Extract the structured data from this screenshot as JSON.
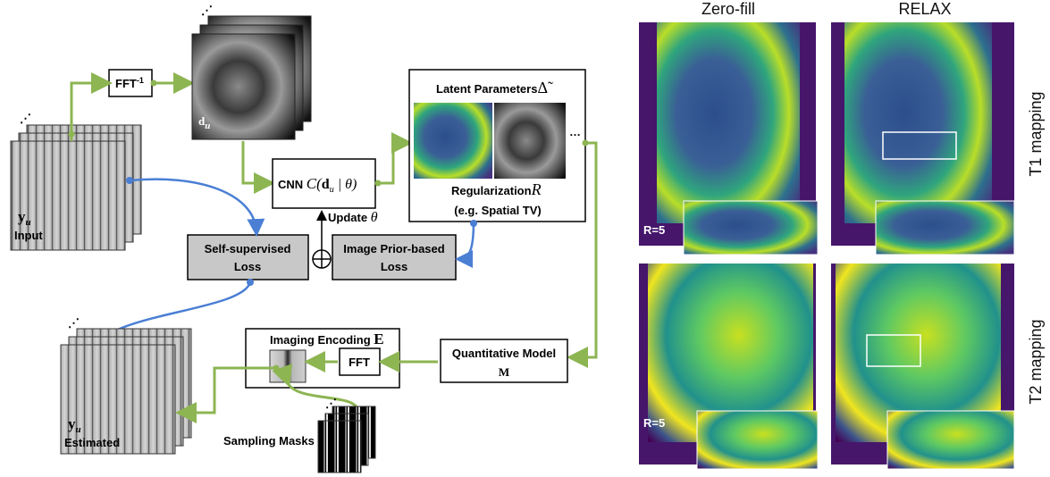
{
  "fft_inverse": {
    "text": "FFT",
    "sup": "-1"
  },
  "du_label": {
    "base": "d",
    "sub": "u"
  },
  "cnn": {
    "label": "CNN",
    "formula_start": "C(",
    "d": "d",
    "sub": "u",
    "formula_end": " | θ)"
  },
  "update": {
    "label": "Update",
    "symbol": "θ"
  },
  "latent": {
    "title": "Latent Parameters",
    "symbol": "Δ̃",
    "regularization": "Regularization",
    "reg_symbol": "R",
    "example": "(e.g. Spatial TV)"
  },
  "self_supervised_loss": [
    "Self-supervised",
    "Loss"
  ],
  "image_prior_loss": [
    "Image Prior-based",
    "Loss"
  ],
  "input": {
    "symbol": "y",
    "sub": "u",
    "label": "Input"
  },
  "estimated": {
    "symbol": "y",
    "sub": "u",
    "label": "Estimated"
  },
  "encoding": {
    "title": "Imaging Encoding",
    "symbol": "E",
    "fft": "FFT"
  },
  "quantitative_model": {
    "title": "Quantitative Model",
    "symbol": "M"
  },
  "sampling_masks": "Sampling Masks",
  "results": {
    "columns": [
      "Zero-fill",
      "RELAX"
    ],
    "rows": [
      "T1 mapping",
      "T2 mapping"
    ],
    "acceleration": [
      "R=5",
      "R=5"
    ]
  }
}
